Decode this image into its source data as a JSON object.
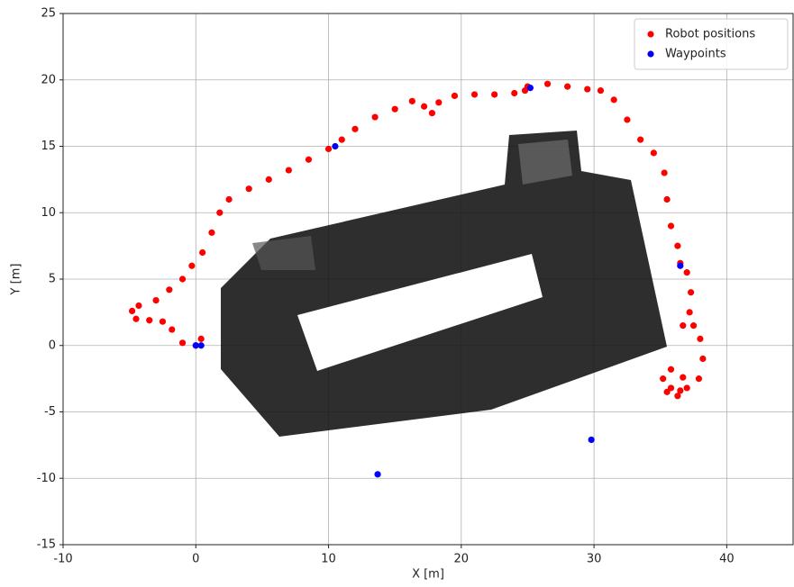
{
  "chart_data": {
    "type": "scatter",
    "xlabel": "X [m]",
    "ylabel": "Y [m]",
    "xlim": [
      -10,
      45
    ],
    "ylim": [
      -15,
      25
    ],
    "xticks": [
      -10,
      0,
      10,
      20,
      30,
      40
    ],
    "yticks": [
      -15,
      -10,
      -5,
      0,
      5,
      10,
      15,
      20,
      25
    ],
    "grid": true,
    "legend": "upper right",
    "series": [
      {
        "name": "Robot positions",
        "color": "#ff0000",
        "x": [
          0.4,
          0,
          -1,
          -1.8,
          -2.5,
          -3.5,
          -4.5,
          -4.8,
          -4.3,
          -3.0,
          -2,
          -1,
          -0.3,
          0.5,
          1.2,
          1.8,
          2.5,
          4,
          5.5,
          7,
          8.5,
          10,
          11,
          12,
          13.5,
          15,
          16.3,
          17.2,
          17.8,
          18.3,
          19.5,
          21,
          22.5,
          24,
          24.8,
          25,
          26.5,
          28,
          29.5,
          30.5,
          31.5,
          32.5,
          33.5,
          34.5,
          35.3,
          35.5,
          35.8,
          36.3,
          36.5,
          37,
          37.3,
          37.2,
          36.7,
          37.5,
          38,
          38.2,
          37.9,
          37,
          36.3,
          35.5,
          35.2,
          35.8,
          36.7,
          36.5,
          35.8
        ],
        "values": [
          0.5,
          0,
          0.2,
          1.2,
          1.8,
          1.9,
          2.0,
          2.6,
          3.0,
          3.4,
          4.2,
          5.0,
          6,
          7,
          8.5,
          10,
          11,
          11.8,
          12.5,
          13.2,
          14,
          14.8,
          15.5,
          16.3,
          17.2,
          17.8,
          18.4,
          18,
          17.5,
          18.3,
          18.8,
          18.9,
          18.9,
          19,
          19.2,
          19.5,
          19.7,
          19.5,
          19.3,
          19.2,
          18.5,
          17,
          15.5,
          14.5,
          13,
          11,
          9,
          7.5,
          6.2,
          5.5,
          4,
          2.5,
          1.5,
          1.5,
          0.5,
          -1,
          -2.5,
          -3.2,
          -3.8,
          -3.5,
          -2.5,
          -1.8,
          -2.4,
          -3.4,
          -3.2
        ]
      },
      {
        "name": "Waypoints",
        "color": "#0000ff",
        "x": [
          0,
          0.4,
          10.5,
          25.2,
          36.5,
          13.7,
          29.8
        ],
        "values": [
          0,
          0,
          15,
          19.4,
          6,
          -9.7,
          -7.1
        ]
      }
    ]
  }
}
